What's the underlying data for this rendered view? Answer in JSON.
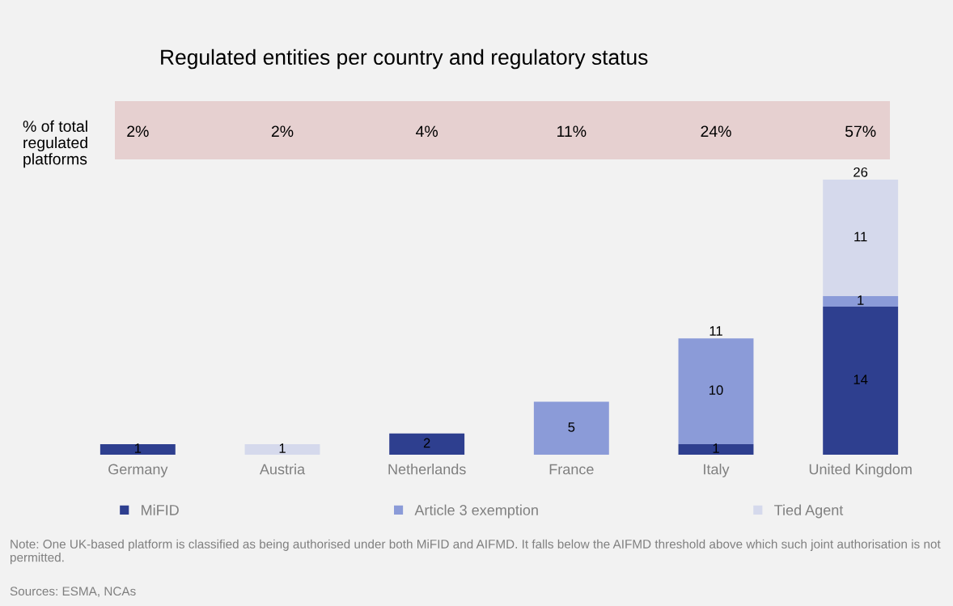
{
  "chart_data": {
    "type": "bar",
    "title": "Regulated entities per country and regulatory status",
    "categories": [
      "Germany",
      "Austria",
      "Netherlands",
      "France",
      "Italy",
      "United Kingdom"
    ],
    "series": [
      {
        "name": "MiFID",
        "color": "#2e3f8f",
        "values": [
          1,
          null,
          2,
          null,
          1,
          14
        ]
      },
      {
        "name": "Article 3 exemption",
        "color": "#8b9bd8",
        "values": [
          null,
          null,
          null,
          5,
          10,
          1
        ]
      },
      {
        "name": "Tied Agent",
        "color": "#d5d9ec",
        "values": [
          null,
          1,
          null,
          null,
          null,
          11
        ]
      }
    ],
    "stacked": true,
    "data_labels": true,
    "totals": [
      null,
      null,
      null,
      null,
      "11",
      "26"
    ],
    "legend": "bottom",
    "marker": "square",
    "grid": false,
    "annotations": [
      "% of total\nregulated\nplatforms",
      "2%",
      "2%",
      "4%",
      "11%",
      "24%",
      "57%",
      "Note: One UK-based platform is classified as being authorised under both MiFID and AIFMD. It falls below the AIFMD threshold above which such joint authorisation is not permitted.",
      "Sources: ESMA, NCAs"
    ]
  }
}
